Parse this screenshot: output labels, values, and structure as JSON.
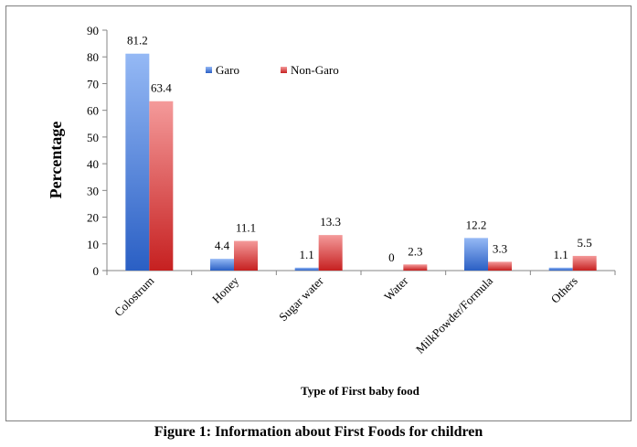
{
  "figure_caption": "Figure 1:  Information about First Foods for children",
  "chart_data": {
    "type": "bar",
    "title": "",
    "xlabel": "Type of First baby food",
    "ylabel": "Percentage",
    "ylim": [
      0,
      90
    ],
    "yticks": [
      "0",
      "10",
      "20",
      "30",
      "40",
      "50",
      "60",
      "70",
      "80",
      "90"
    ],
    "categories": [
      "Colostrum",
      "Honey",
      "Sugar water",
      "Water",
      "MilkPowder/Formula",
      "Others"
    ],
    "series": [
      {
        "name": "Garo",
        "values": [
          81.2,
          4.4,
          1.1,
          0,
          12.2,
          1.1
        ],
        "data_labels": [
          "81.2",
          "4.4",
          "1.1",
          "0",
          "12.2",
          "1.1"
        ],
        "color_light": "#95b9f5",
        "color_dark": "#2a5fc4"
      },
      {
        "name": "Non-Garo",
        "values": [
          63.4,
          11.1,
          13.3,
          2.3,
          3.3,
          5.5
        ],
        "data_labels": [
          "63.4",
          "11.1",
          "13.3",
          "2.3",
          "3.3",
          "5.5"
        ],
        "color_light": "#f49a9a",
        "color_dark": "#c62020"
      }
    ],
    "grid": false,
    "legend_position": "top-center"
  }
}
